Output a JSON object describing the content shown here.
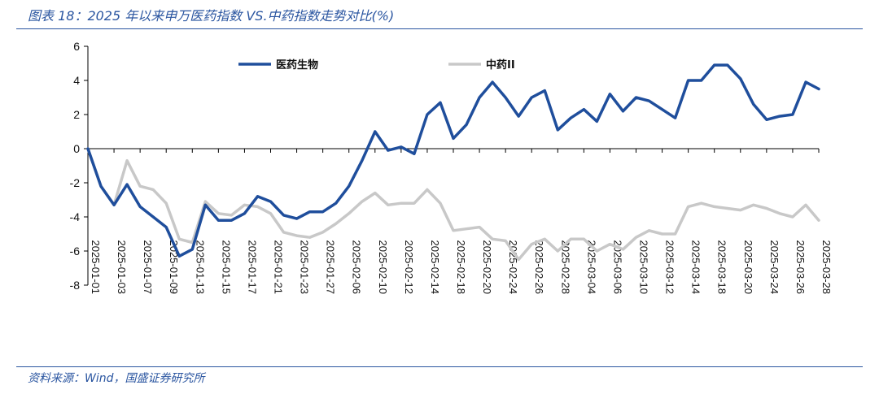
{
  "header": {
    "figure_title": "图表 18：2025 年以来申万医药指数 VS.中药指数走势对比(%)"
  },
  "footer": {
    "source": "资料来源：Wind，国盛证券研究所"
  },
  "colors": {
    "series1": "#1f4e9c",
    "series2": "#c8c8c8",
    "rule": "#2a55a0"
  },
  "chart_data": {
    "type": "line",
    "title": "2025 年以来申万医药指数 VS.中药指数走势对比(%)",
    "xlabel": "",
    "ylabel": "",
    "ylim": [
      -8,
      6
    ],
    "yticks": [
      -8,
      -6,
      -4,
      -2,
      0,
      2,
      4,
      6
    ],
    "legend_position": "top",
    "grid": false,
    "x": [
      "2025-01-01",
      "2025-01-02",
      "2025-01-03",
      "2025-01-06",
      "2025-01-07",
      "2025-01-08",
      "2025-01-09",
      "2025-01-10",
      "2025-01-13",
      "2025-01-14",
      "2025-01-15",
      "2025-01-16",
      "2025-01-17",
      "2025-01-20",
      "2025-01-21",
      "2025-01-22",
      "2025-01-23",
      "2025-01-24",
      "2025-01-27",
      "2025-02-05",
      "2025-02-06",
      "2025-02-07",
      "2025-02-10",
      "2025-02-11",
      "2025-02-12",
      "2025-02-13",
      "2025-02-14",
      "2025-02-17",
      "2025-02-18",
      "2025-02-19",
      "2025-02-20",
      "2025-02-21",
      "2025-02-24",
      "2025-02-25",
      "2025-02-26",
      "2025-02-27",
      "2025-02-28",
      "2025-03-03",
      "2025-03-04",
      "2025-03-05",
      "2025-03-06",
      "2025-03-07",
      "2025-03-10",
      "2025-03-11",
      "2025-03-12",
      "2025-03-13",
      "2025-03-14",
      "2025-03-17",
      "2025-03-18",
      "2025-03-19",
      "2025-03-20",
      "2025-03-21",
      "2025-03-24",
      "2025-03-25",
      "2025-03-26",
      "2025-03-27",
      "2025-03-28"
    ],
    "tick_labels": [
      "2025-01-01",
      "2025-01-03",
      "2025-01-07",
      "2025-01-09",
      "2025-01-13",
      "2025-01-15",
      "2025-01-17",
      "2025-01-21",
      "2025-01-23",
      "2025-01-27",
      "2025-02-06",
      "2025-02-10",
      "2025-02-12",
      "2025-02-14",
      "2025-02-18",
      "2025-02-20",
      "2025-02-24",
      "2025-02-26",
      "2025-02-28",
      "2025-03-04",
      "2025-03-06",
      "2025-03-10",
      "2025-03-12",
      "2025-03-14",
      "2025-03-18",
      "2025-03-20",
      "2025-03-24",
      "2025-03-26",
      "2025-03-28"
    ],
    "series": [
      {
        "name": "医药生物",
        "values": [
          0.0,
          -2.2,
          -3.3,
          -2.1,
          -3.4,
          -4.0,
          -4.6,
          -6.3,
          -5.9,
          -3.3,
          -4.2,
          -4.2,
          -3.8,
          -2.8,
          -3.1,
          -3.9,
          -4.1,
          -3.7,
          -3.7,
          -3.2,
          -2.2,
          -0.7,
          1.0,
          -0.1,
          0.1,
          -0.3,
          2.0,
          2.7,
          0.6,
          1.4,
          3.0,
          3.9,
          3.0,
          1.9,
          3.0,
          3.4,
          1.1,
          1.8,
          2.3,
          1.6,
          3.2,
          2.2,
          3.0,
          2.8,
          2.3,
          1.8,
          4.0,
          4.0,
          4.9,
          4.9,
          4.1,
          2.6,
          1.7,
          1.9,
          2.0,
          3.9,
          3.5
        ]
      },
      {
        "name": "中药II",
        "values": [
          0.0,
          -2.2,
          -3.3,
          -0.7,
          -2.2,
          -2.4,
          -3.2,
          -5.3,
          -5.5,
          -3.1,
          -3.8,
          -3.9,
          -3.3,
          -3.4,
          -3.8,
          -4.9,
          -5.1,
          -5.2,
          -4.9,
          -4.4,
          -3.8,
          -3.1,
          -2.6,
          -3.3,
          -3.2,
          -3.2,
          -2.4,
          -3.2,
          -4.8,
          -4.7,
          -4.6,
          -5.3,
          -5.4,
          -6.5,
          -5.6,
          -5.3,
          -6.0,
          -5.3,
          -5.3,
          -6.0,
          -5.6,
          -5.9,
          -5.2,
          -4.8,
          -5.0,
          -5.0,
          -3.4,
          -3.2,
          -3.4,
          -3.5,
          -3.6,
          -3.3,
          -3.5,
          -3.8,
          -4.0,
          -3.3,
          -4.2
        ]
      }
    ]
  }
}
